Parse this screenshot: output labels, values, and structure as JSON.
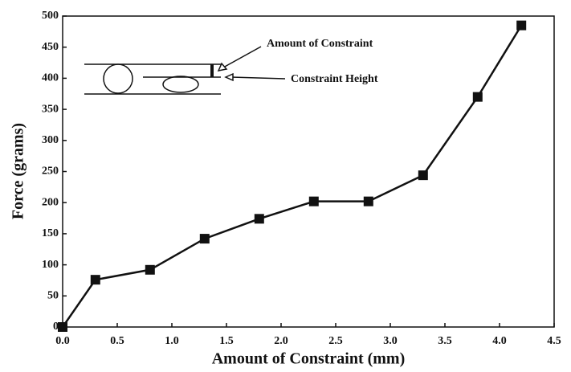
{
  "chart_data": {
    "type": "line",
    "x_label": "Amount of Constraint (mm)",
    "y_label": "Force (grams)",
    "annotations": [
      "Amount of Constraint",
      "Constraint Height"
    ],
    "series": [
      {
        "color": "#111111",
        "x": [
          0,
          0.3,
          0.8,
          1.3,
          1.8,
          2.3,
          2.8,
          3.3,
          3.8,
          4.2
        ],
        "values": [
          0,
          76,
          92,
          142,
          174,
          202,
          202,
          244,
          370,
          485
        ]
      }
    ],
    "xlim": [
      0,
      4.5
    ],
    "xticks": [
      {
        "value": 0,
        "label": "0.0"
      },
      0.5,
      {
        "value": 1,
        "label": "1.0"
      },
      1.5,
      {
        "value": 2,
        "label": "2.0"
      },
      2.5,
      {
        "value": 3,
        "label": "3.0"
      },
      3.5,
      {
        "value": 4,
        "label": "4.0"
      },
      4.5
    ],
    "ylim": [
      0,
      500
    ],
    "yticks": [
      0,
      50,
      100,
      150,
      200,
      250,
      300,
      350,
      400,
      450,
      500
    ]
  }
}
